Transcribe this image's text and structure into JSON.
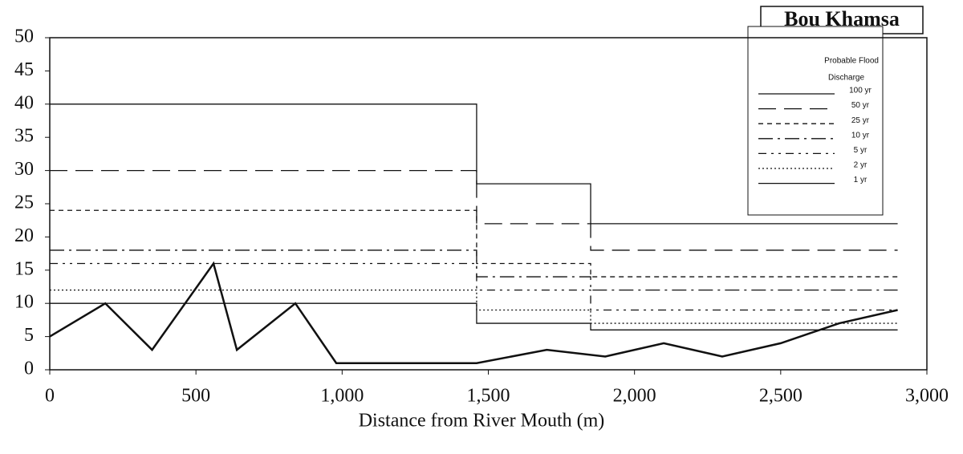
{
  "chart_data": {
    "type": "line",
    "title": "Bou Khamsa",
    "x_label": "Distance from River Mouth (m)",
    "legend_title": [
      "Probable Flood",
      "Discharge"
    ],
    "xlim": [
      0,
      3000
    ],
    "xticks": [
      0,
      500,
      {
        "value": 1000,
        "label": "1,000"
      },
      {
        "value": 1500,
        "label": "1,500"
      },
      {
        "value": 2000,
        "label": "2,000"
      },
      {
        "value": 2500,
        "label": "2,500"
      },
      {
        "value": 3000,
        "label": "3,000"
      }
    ],
    "ylim": [
      0,
      50
    ],
    "yticks": [
      0,
      5,
      10,
      15,
      20,
      25,
      30,
      35,
      40,
      45,
      50
    ],
    "series": [
      {
        "name": "100 yr",
        "color": "#111",
        "dash": "none",
        "x": [
          0,
          1460,
          1460,
          1850,
          1850,
          2900
        ],
        "values": [
          40,
          40,
          28,
          28,
          22,
          22
        ]
      },
      {
        "name": "50 yr",
        "color": "#111",
        "dash": "22 10",
        "x": [
          0,
          1460,
          1460,
          1850,
          1850,
          2900
        ],
        "values": [
          30,
          30,
          22,
          22,
          18,
          18
        ]
      },
      {
        "name": "25 yr",
        "color": "#111",
        "dash": "6 5",
        "x": [
          0,
          1460,
          1460,
          1850,
          1850,
          2900
        ],
        "values": [
          24,
          24,
          16,
          16,
          14,
          14
        ]
      },
      {
        "name": "10 yr",
        "color": "#111",
        "dash": "18 6 3 6",
        "x": [
          0,
          1460,
          1460,
          1850,
          1850,
          2900
        ],
        "values": [
          18,
          18,
          14,
          14,
          12,
          12
        ]
      },
      {
        "name": "5 yr",
        "color": "#111",
        "dash": "10 6 3 6 3 6",
        "x": [
          0,
          1460,
          1460,
          1850,
          1850,
          2900
        ],
        "values": [
          16,
          16,
          12,
          12,
          9,
          9
        ]
      },
      {
        "name": "2 yr",
        "color": "#111",
        "dash": "2 3",
        "x": [
          0,
          1460,
          1460,
          1850,
          1850,
          2900
        ],
        "values": [
          12,
          12,
          9,
          9,
          7,
          7
        ]
      },
      {
        "name": "1 yr",
        "color": "#111",
        "dash": "none",
        "x": [
          0,
          1460,
          1460,
          1850,
          1850,
          2900
        ],
        "values": [
          10,
          10,
          7,
          7,
          6,
          6
        ]
      },
      {
        "color": "#111",
        "dash": "none",
        "width": 2.5,
        "x": [
          0,
          190,
          350,
          560,
          640,
          840,
          980,
          1460,
          1700,
          1900,
          2100,
          2300,
          2500,
          2700,
          2900
        ],
        "values": [
          5,
          10,
          3,
          16,
          3,
          10,
          1,
          1,
          3,
          2,
          4,
          2,
          4,
          7,
          9
        ]
      }
    ]
  }
}
